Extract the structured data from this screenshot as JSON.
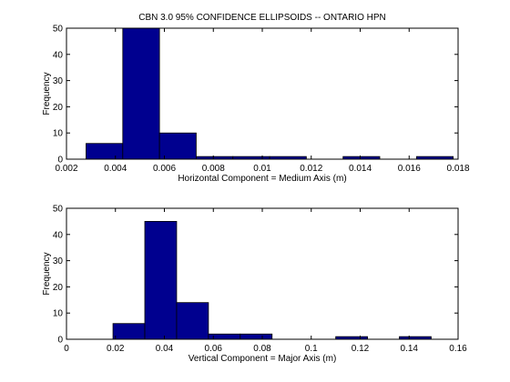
{
  "chart_data": [
    {
      "type": "bar",
      "title": "CBN 3.0 95% CONFIDENCE ELLIPSOIDS -- ONTARIO HPN",
      "xlabel": "Horizontal Component = Medium Axis (m)",
      "ylabel": "Frequency",
      "xlim": [
        0.002,
        0.018
      ],
      "ylim": [
        0,
        50
      ],
      "xticks": [
        0.002,
        0.004,
        0.006,
        0.008,
        0.01,
        0.012,
        0.014,
        0.016,
        0.018
      ],
      "xtick_labels": [
        "0.002",
        "0.004",
        "0.006",
        "0.008",
        "0.01",
        "0.012",
        "0.014",
        "0.016",
        "0.018"
      ],
      "yticks": [
        0,
        10,
        20,
        30,
        40,
        50
      ],
      "ytick_labels": [
        "0",
        "10",
        "20",
        "30",
        "40",
        "50"
      ],
      "bins": [
        {
          "x0": 0.0028,
          "x1": 0.0043,
          "count": 6
        },
        {
          "x0": 0.0043,
          "x1": 0.0058,
          "count": 50
        },
        {
          "x0": 0.0058,
          "x1": 0.0073,
          "count": 10
        },
        {
          "x0": 0.0073,
          "x1": 0.0088,
          "count": 1
        },
        {
          "x0": 0.0088,
          "x1": 0.0103,
          "count": 1
        },
        {
          "x0": 0.0103,
          "x1": 0.0118,
          "count": 1
        },
        {
          "x0": 0.0133,
          "x1": 0.0148,
          "count": 1
        },
        {
          "x0": 0.0163,
          "x1": 0.0178,
          "count": 1
        }
      ],
      "bar_color": "#00008f",
      "grid": false
    },
    {
      "type": "bar",
      "title": "",
      "xlabel": "Vertical Component = Major Axis (m)",
      "ylabel": "Frequency",
      "xlim": [
        0,
        0.16
      ],
      "ylim": [
        0,
        50
      ],
      "xticks": [
        0,
        0.02,
        0.04,
        0.06,
        0.08,
        0.1,
        0.12,
        0.14,
        0.16
      ],
      "xtick_labels": [
        "0",
        "0.02",
        "0.04",
        "0.06",
        "0.08",
        "0.1",
        "0.12",
        "0.14",
        "0.16"
      ],
      "yticks": [
        0,
        10,
        20,
        30,
        40,
        50
      ],
      "ytick_labels": [
        "0",
        "10",
        "20",
        "30",
        "40",
        "50"
      ],
      "bins": [
        {
          "x0": 0.019,
          "x1": 0.032,
          "count": 6
        },
        {
          "x0": 0.032,
          "x1": 0.045,
          "count": 45
        },
        {
          "x0": 0.045,
          "x1": 0.058,
          "count": 14
        },
        {
          "x0": 0.058,
          "x1": 0.071,
          "count": 2
        },
        {
          "x0": 0.071,
          "x1": 0.084,
          "count": 2
        },
        {
          "x0": 0.11,
          "x1": 0.123,
          "count": 1
        },
        {
          "x0": 0.136,
          "x1": 0.149,
          "count": 1
        }
      ],
      "bar_color": "#00008f",
      "grid": false
    }
  ]
}
